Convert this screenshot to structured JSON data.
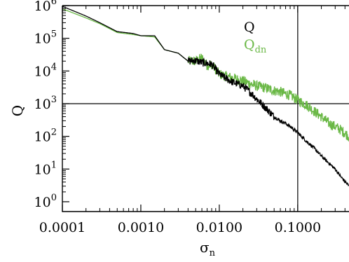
{
  "chart_data": {
    "type": "line",
    "xlabel": "σ",
    "xlabel_sub": "n",
    "ylabel": "Q",
    "x_scale": "log",
    "y_scale": "log",
    "xlim": [
      0.0001,
      0.45
    ],
    "ylim": [
      0.5,
      1000000
    ],
    "x_ticks": [
      0.0001,
      0.001,
      0.01,
      0.1
    ],
    "x_tick_labels": [
      "0.0001",
      "0.0010",
      "0.0100",
      "0.1000"
    ],
    "y_ticks": [
      1,
      10,
      100,
      1000,
      10000,
      100000,
      1000000
    ],
    "y_tick_labels": [
      {
        "base": "10",
        "exp": "0"
      },
      {
        "base": "10",
        "exp": "1"
      },
      {
        "base": "10",
        "exp": "2"
      },
      {
        "base": "10",
        "exp": "3"
      },
      {
        "base": "10",
        "exp": "4"
      },
      {
        "base": "10",
        "exp": "5"
      },
      {
        "base": "10",
        "exp": "6"
      }
    ],
    "reference_lines": {
      "x": 0.1,
      "y": 1000
    },
    "legend_position": "top-right",
    "series": [
      {
        "name": "Q",
        "name_sub": "",
        "color": "#000000",
        "x": [
          0.0001,
          0.0002,
          0.0003,
          0.0005,
          0.0008,
          0.001,
          0.0015,
          0.002,
          0.003,
          0.004,
          0.005,
          0.006,
          0.007,
          0.008,
          0.01,
          0.012,
          0.015,
          0.02,
          0.025,
          0.03,
          0.04,
          0.05,
          0.06,
          0.07,
          0.08,
          0.1,
          0.13,
          0.16,
          0.2,
          0.25,
          0.3,
          0.35,
          0.45
        ],
        "y": [
          950000,
          480000,
          300000,
          160000,
          140000,
          120000,
          120000,
          45000,
          35000,
          20000,
          21000,
          18000,
          17000,
          16000,
          8000,
          6000,
          4500,
          3500,
          2200,
          1400,
          700,
          400,
          300,
          250,
          200,
          130,
          70,
          45,
          25,
          15,
          10,
          6,
          3
        ]
      },
      {
        "name": "Q",
        "name_sub": "dn",
        "color": "#6ab846",
        "x": [
          0.0001,
          0.0002,
          0.0003,
          0.0005,
          0.0008,
          0.001,
          0.0015,
          0.002,
          0.003,
          0.004,
          0.005,
          0.006,
          0.007,
          0.008,
          0.01,
          0.012,
          0.015,
          0.02,
          0.025,
          0.03,
          0.04,
          0.05,
          0.06,
          0.07,
          0.08,
          0.1,
          0.13,
          0.16,
          0.2,
          0.25,
          0.3,
          0.35,
          0.45
        ],
        "y": [
          800000,
          420000,
          280000,
          150000,
          130000,
          120000,
          110000,
          45000,
          35000,
          20000,
          20000,
          25000,
          15000,
          16000,
          8000,
          7000,
          6000,
          5000,
          4000,
          3500,
          3000,
          2500,
          2300,
          2000,
          1800,
          1300,
          900,
          600,
          400,
          250,
          200,
          160,
          100
        ]
      }
    ]
  }
}
